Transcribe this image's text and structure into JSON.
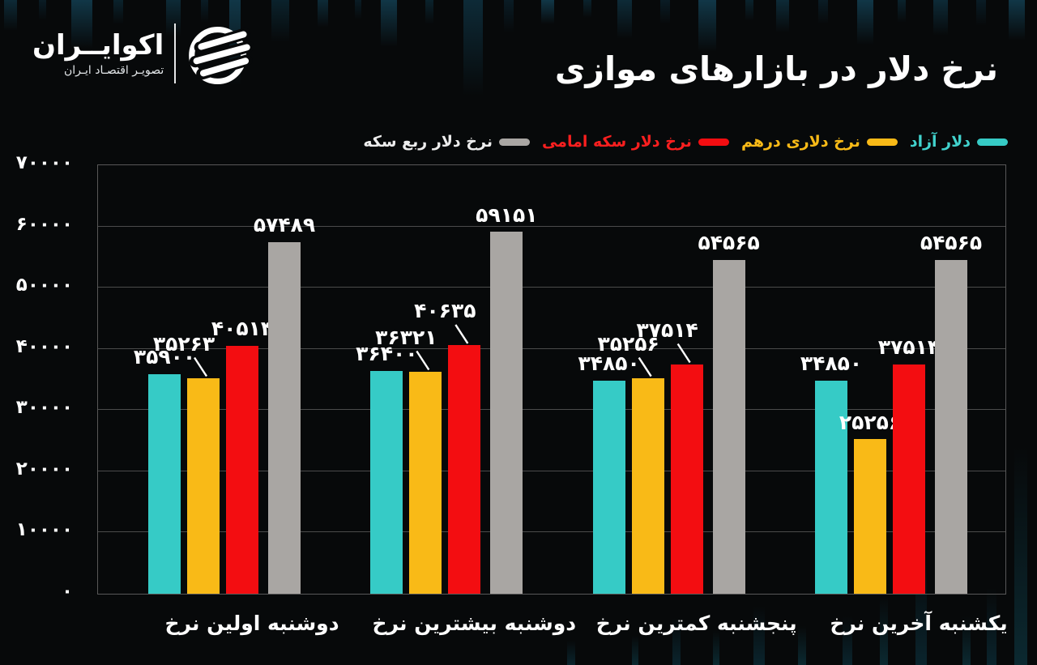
{
  "brand": {
    "name": "اکوایــران",
    "tagline": "تصویـر اقتصـاد ایـران"
  },
  "title": "نرخ دلار در بازارهای موازی",
  "chart_data": {
    "type": "bar",
    "title": "نرخ دلار در بازارهای موازی",
    "categories": [
      "دوشنبه اولین نرخ",
      "دوشنبه بیشترین نرخ",
      "پنجشنبه کمترین نرخ",
      "یکشنبه آخرین نرخ"
    ],
    "series": [
      {
        "key": "free-dollar",
        "name": "دلار آزاد",
        "color": "#36cbc6",
        "label_color": "#41d2cd",
        "values": [
          35900,
          36400,
          34850,
          34850
        ]
      },
      {
        "key": "dirham-rate",
        "name": "نرخ دلاری درهم",
        "color": "#f9ba17",
        "label_color": "#f9ba17",
        "values": [
          35263,
          36321,
          35256,
          25256
        ]
      },
      {
        "key": "emami-coin",
        "name": "نرخ دلار سکه امامی",
        "color": "#f30d11",
        "label_color": "#fb1f1f",
        "values": [
          40514,
          40635,
          37514,
          37514
        ]
      },
      {
        "key": "quarter-coin",
        "name": "نرخ دلار ربع سکه",
        "color": "#a9a6a3",
        "label_color": "#ededed",
        "values": [
          57489,
          59151,
          54565,
          54565
        ]
      }
    ],
    "ylim": [
      0,
      70000
    ],
    "yticks": [
      0,
      10000,
      20000,
      30000,
      40000,
      50000,
      60000,
      70000
    ],
    "grid": true,
    "legend_position": "top-right",
    "bar_value_labels": true,
    "number_locale": "fa",
    "value_label_color": "#ffffff",
    "grid_color": "#4b4b4b",
    "background_color": "#07090a"
  }
}
